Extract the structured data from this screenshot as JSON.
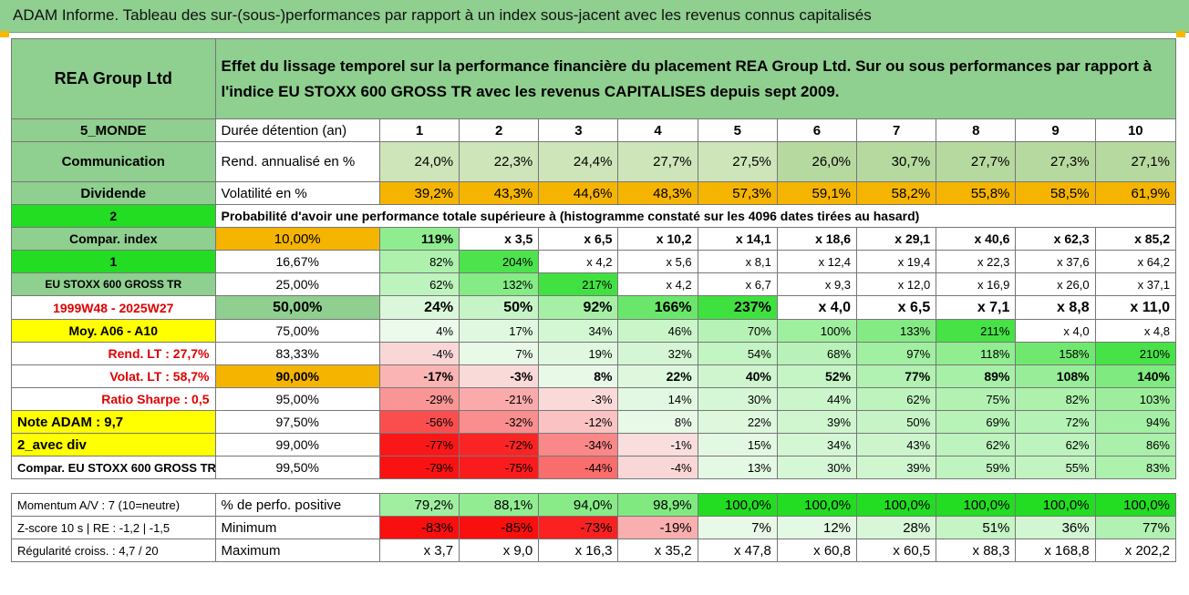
{
  "title": "ADAM Informe. Tableau des sur-(sous-)performances par rapport à un index sous-jacent avec les revenus connus capitalisés",
  "company": "REA Group Ltd",
  "description": "Effet du lissage temporel sur la performance financière du placement REA Group Ltd. Sur ou sous performances par rapport à l'indice EU STOXX 600 GROSS TR avec les revenus CAPITALISES depuis sept 2009.",
  "rows": [
    {
      "side": "5_MONDE",
      "label": "Durée détention (an)",
      "values": [
        "1",
        "2",
        "3",
        "4",
        "5",
        "6",
        "7",
        "8",
        "9",
        "10"
      ]
    },
    {
      "side": "Communication",
      "label": "Rend. annualisé en %",
      "values": [
        "24,0%",
        "22,3%",
        "24,4%",
        "27,7%",
        "27,5%",
        "26,0%",
        "30,7%",
        "27,7%",
        "27,3%",
        "27,1%"
      ]
    },
    {
      "side": "Dividende",
      "label": "Volatilité en %",
      "values": [
        "39,2%",
        "43,3%",
        "44,6%",
        "48,3%",
        "57,3%",
        "59,1%",
        "58,2%",
        "55,8%",
        "58,5%",
        "61,9%"
      ]
    },
    {
      "side": "2",
      "label": "Probabilité d'avoir une performance totale supérieure à (histogramme constaté sur les 4096 dates tirées au hasard)",
      "values": []
    },
    {
      "side": "Compar. index",
      "label": "10,00%",
      "values": [
        "119%",
        "x 3,5",
        "x 6,5",
        "x 10,2",
        "x 14,1",
        "x 18,6",
        "x 29,1",
        "x 40,6",
        "x 62,3",
        "x 85,2"
      ]
    },
    {
      "side": "1",
      "label": "16,67%",
      "values": [
        "82%",
        "204%",
        "x 4,2",
        "x 5,6",
        "x 8,1",
        "x 12,4",
        "x 19,4",
        "x 22,3",
        "x 37,6",
        "x 64,2"
      ]
    },
    {
      "side": "EU STOXX 600 GROSS TR",
      "label": "25,00%",
      "values": [
        "62%",
        "132%",
        "217%",
        "x 4,2",
        "x 6,7",
        "x 9,3",
        "x 12,0",
        "x 16,9",
        "x 26,0",
        "x 37,1"
      ]
    },
    {
      "side": "1999W48 - 2025W27",
      "label": "50,00%",
      "values": [
        "24%",
        "50%",
        "92%",
        "166%",
        "237%",
        "x 4,0",
        "x 6,5",
        "x 7,1",
        "x 8,8",
        "x 11,0"
      ]
    },
    {
      "side": "Moy. A06 - A10",
      "label": "75,00%",
      "values": [
        "4%",
        "17%",
        "34%",
        "46%",
        "70%",
        "100%",
        "133%",
        "211%",
        "x 4,0",
        "x 4,8"
      ]
    },
    {
      "side": "Rend. LT :    27,7%",
      "label": "83,33%",
      "values": [
        "-4%",
        "7%",
        "19%",
        "32%",
        "54%",
        "68%",
        "97%",
        "118%",
        "158%",
        "210%"
      ]
    },
    {
      "side": "Volat. LT :    58,7%",
      "label": "90,00%",
      "values": [
        "-17%",
        "-3%",
        "8%",
        "22%",
        "40%",
        "52%",
        "77%",
        "89%",
        "108%",
        "140%"
      ]
    },
    {
      "side": "Ratio Sharpe :    0,5",
      "label": "95,00%",
      "values": [
        "-29%",
        "-21%",
        "-3%",
        "14%",
        "30%",
        "44%",
        "62%",
        "75%",
        "82%",
        "103%"
      ]
    },
    {
      "side": "Note ADAM : 9,7",
      "label": "97,50%",
      "values": [
        "-56%",
        "-32%",
        "-12%",
        "8%",
        "22%",
        "39%",
        "50%",
        "69%",
        "72%",
        "94%"
      ]
    },
    {
      "side": "2_avec div",
      "label": "99,00%",
      "values": [
        "-77%",
        "-72%",
        "-34%",
        "-1%",
        "15%",
        "34%",
        "43%",
        "62%",
        "62%",
        "86%"
      ]
    },
    {
      "side": "Compar. EU STOXX 600 GROSS TR",
      "label": "99,50%",
      "values": [
        "-79%",
        "-75%",
        "-44%",
        "-4%",
        "13%",
        "30%",
        "39%",
        "59%",
        "55%",
        "83%"
      ]
    },
    {
      "side": "Momentum A/V : 7 (10=neutre)",
      "label": "% de perfo. positive",
      "values": [
        "79,2%",
        "88,1%",
        "94,0%",
        "98,9%",
        "100,0%",
        "100,0%",
        "100,0%",
        "100,0%",
        "100,0%",
        "100,0%"
      ]
    },
    {
      "side": "Z-score 10 s | RE : -1,2 | -1,5",
      "label": "Minimum",
      "values": [
        "-83%",
        "-85%",
        "-73%",
        "-19%",
        "7%",
        "12%",
        "28%",
        "51%",
        "36%",
        "77%"
      ]
    },
    {
      "side": "Régularité croiss. : 4,7 / 20",
      "label": "Maximum",
      "values": [
        "x 3,7",
        "x 9,0",
        "x 16,3",
        "x 35,2",
        "x 47,8",
        "x 60,8",
        "x 60,5",
        "x 88,3",
        "x 168,8",
        "x 202,2"
      ]
    }
  ],
  "colors": {
    "header_green": "#8fcf8f",
    "bright_green": "#22dd22",
    "orange": "#f5b400",
    "yellow": "#ffff00",
    "red_text": "#e00000",
    "red_cell": "#ee1111"
  }
}
